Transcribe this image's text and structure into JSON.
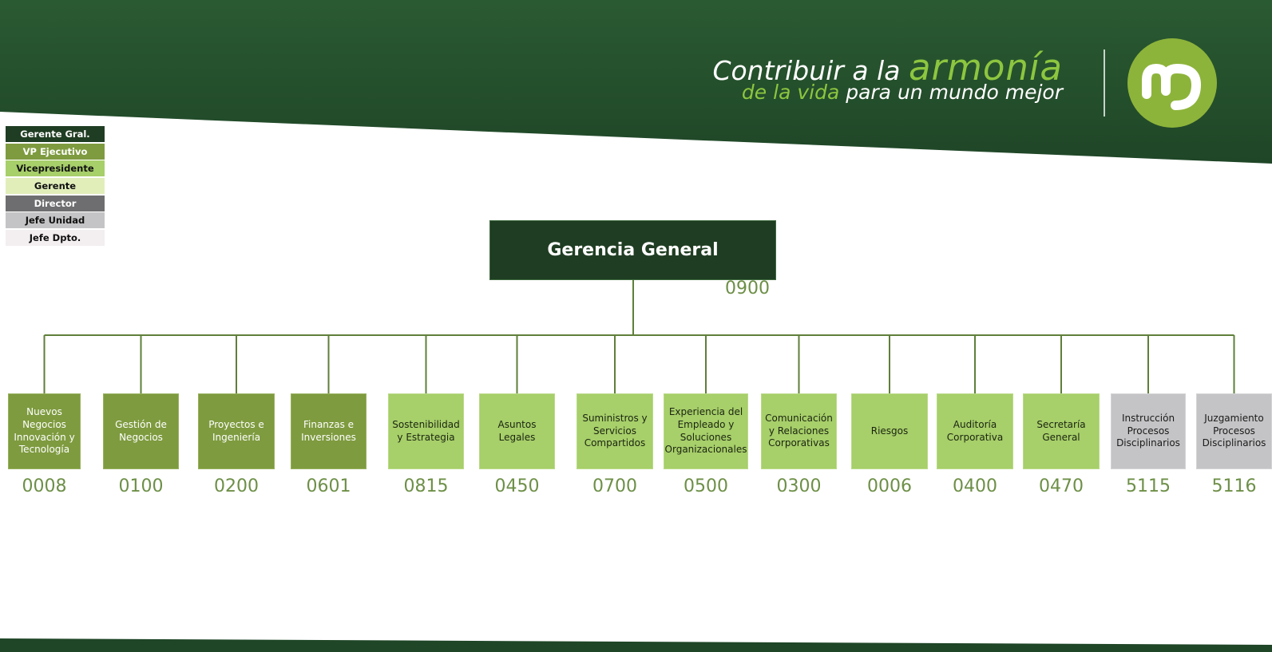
{
  "header": {
    "slogan_line1_prefix": "Contribuir a la",
    "slogan_line1_highlight": "armonía",
    "slogan_line2_highlight": "de la vida",
    "slogan_line2_suffix": "para un mundo mejor",
    "logo_icon": "company-logo-icon",
    "colors": {
      "banner": "#244f2c",
      "accent": "#8dc63f",
      "logo": "#8db43a"
    }
  },
  "legend": [
    {
      "label": "Gerente Gral.",
      "bg": "#1f3d22",
      "fg": "#ffffff"
    },
    {
      "label": "VP Ejecutivo",
      "bg": "#7e9b3f",
      "fg": "#ffffff"
    },
    {
      "label": "Vicepresidente",
      "bg": "#a7cf6a",
      "fg": "#111111"
    },
    {
      "label": "Gerente",
      "bg": "#e1eeba",
      "fg": "#111111"
    },
    {
      "label": "Director",
      "bg": "#6e6e70",
      "fg": "#ffffff"
    },
    {
      "label": "Jefe Unidad",
      "bg": "#c4c4c6",
      "fg": "#111111"
    },
    {
      "label": "Jefe Dpto.",
      "bg": "#f3eef0",
      "fg": "#111111"
    }
  ],
  "root": {
    "label": "Gerencia General",
    "code": "0900"
  },
  "children": [
    {
      "label": "Nuevos Negocios Innovación y Tecnología",
      "code": "0008",
      "level": "vp"
    },
    {
      "label": "Gestión de Negocios",
      "code": "0100",
      "level": "vp"
    },
    {
      "label": "Proyectos e Ingeniería",
      "code": "0200",
      "level": "vp"
    },
    {
      "label": "Finanzas e Inversiones",
      "code": "0601",
      "level": "vp"
    },
    {
      "label": "Sostenibilidad y Estrategia",
      "code": "0815",
      "level": "vice"
    },
    {
      "label": "Asuntos Legales",
      "code": "0450",
      "level": "vice"
    },
    {
      "label": "Suministros y Servicios Compartidos",
      "code": "0700",
      "level": "vice"
    },
    {
      "label": "Experiencia del Empleado y Soluciones Organizacionales",
      "code": "0500",
      "level": "vice"
    },
    {
      "label": "Comunicación y Relaciones Corporativas",
      "code": "0300",
      "level": "vice"
    },
    {
      "label": "Riesgos",
      "code": "0006",
      "level": "vice"
    },
    {
      "label": "Auditoría Corporativa",
      "code": "0400",
      "level": "vice"
    },
    {
      "label": "Secretaría General",
      "code": "0470",
      "level": "vice"
    },
    {
      "label": "Instrucción Procesos Disciplinarios",
      "code": "5115",
      "level": "jefe"
    },
    {
      "label": "Juzgamiento Procesos Disciplinarios",
      "code": "5116",
      "level": "jefe"
    }
  ],
  "connector_color": "#5f7f3a"
}
